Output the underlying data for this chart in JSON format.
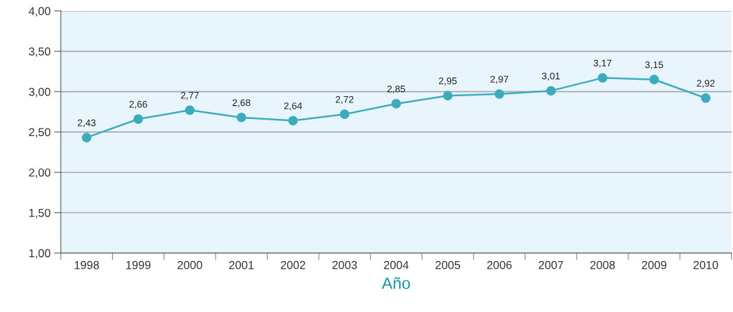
{
  "chart_data": {
    "type": "line",
    "xlabel": "Año",
    "categories": [
      "1998",
      "1999",
      "2000",
      "2001",
      "2002",
      "2003",
      "2004",
      "2005",
      "2006",
      "2007",
      "2008",
      "2009",
      "2010"
    ],
    "series": [
      {
        "color": "#3aacbd",
        "values": [
          2.43,
          2.66,
          2.77,
          2.68,
          2.64,
          2.72,
          2.85,
          2.95,
          2.97,
          3.01,
          3.17,
          3.15,
          2.92
        ],
        "value_labels": [
          "2,43",
          "2,66",
          "2,77",
          "2,68",
          "2,64",
          "2,72",
          "2,85",
          "2,95",
          "2,97",
          "3,01",
          "3,17",
          "3,15",
          "2,92"
        ]
      }
    ],
    "ylim": [
      1.0,
      4.0
    ],
    "yticks": [
      {
        "value": 1.0,
        "label": "1,00"
      },
      {
        "value": 1.5,
        "label": "1,50"
      },
      {
        "value": 2.0,
        "label": "2,00"
      },
      {
        "value": 2.5,
        "label": "2,50"
      },
      {
        "value": 3.0,
        "label": "3,00"
      },
      {
        "value": 3.5,
        "label": "3,50"
      },
      {
        "value": 4.0,
        "label": "4,00"
      }
    ],
    "grid": "y",
    "marker": "circle",
    "line_style": "solid"
  }
}
